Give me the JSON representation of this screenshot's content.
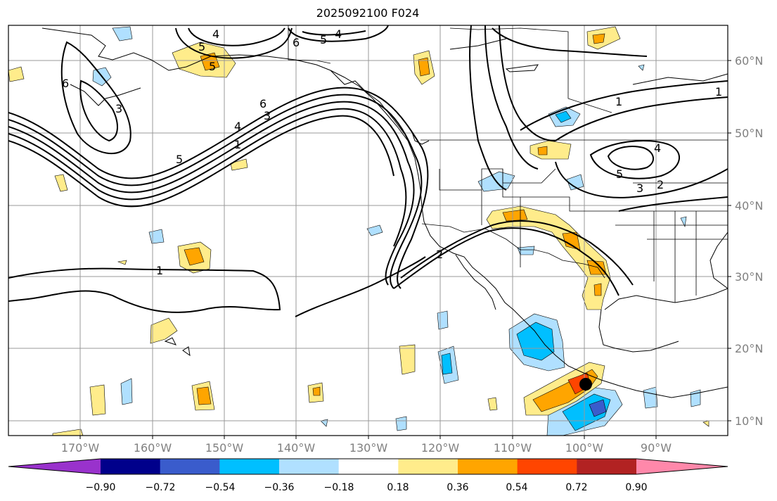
{
  "title": "2025092100 F024",
  "map": {
    "lon_labels": [
      "170°W",
      "160°W",
      "150°W",
      "140°W",
      "130°W",
      "120°W",
      "110°W",
      "100°W",
      "90°W"
    ],
    "lat_labels": [
      "60°N",
      "50°N",
      "40°N",
      "30°N",
      "20°N",
      "10°N"
    ],
    "contour_labels": [
      "4",
      "5",
      "6",
      "5",
      "4",
      "5",
      "6",
      "3",
      "6",
      "5",
      "4",
      "3",
      "1",
      "2",
      "1",
      "5",
      "3",
      "2",
      "4",
      "1",
      "1"
    ]
  },
  "colorbar": {
    "colors": [
      "#9932cc",
      "#00008b",
      "#3a5ccc",
      "#00bfff",
      "#b0e0ff",
      "#ffffff",
      "#ffec8b",
      "#ffa500",
      "#ff4500",
      "#b22222",
      "#ff88aa"
    ],
    "tick_labels": [
      "−0.90",
      "−0.72",
      "−0.54",
      "−0.36",
      "−0.18",
      "0.18",
      "0.36",
      "0.54",
      "0.72",
      "0.90"
    ]
  },
  "marker": {
    "label": "storm-center",
    "color": "#000000"
  }
}
